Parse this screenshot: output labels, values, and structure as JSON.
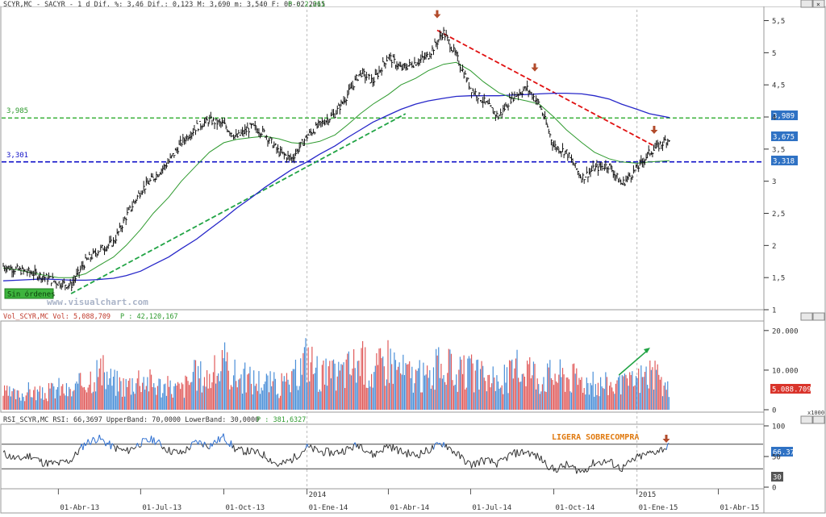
{
  "colors": {
    "price": "#111111",
    "ma_short": "#2e9a2e",
    "ma_long": "#2727c9",
    "support": "#1010c8",
    "resistance": "#18a418",
    "trend_down": "#e01010",
    "trend_up": "#21a445",
    "arrow": "#b24b2b",
    "vol_up": "#4a8fd8",
    "vol_down": "#e05a5a",
    "rsi": "#333333",
    "rsi_over": "#2e6fd0",
    "tag_blue": "#2f72c4",
    "tag_red": "#d9342b",
    "tag_gray": "#555555",
    "tag_green": "#3db43d",
    "label_orange": "#e07a10"
  },
  "price_panel": {
    "header": {
      "main": "SCYR,MC - SACYR -  1 d Dif. %: 3,46 Dif.: 0,123 M: 3,690 m: 3,540 F: 06-02-2015",
      "extra": "P : 2,261"
    },
    "line_labels": {
      "resistance": "3,985",
      "support": "3,301"
    },
    "last_tags": {
      "resistance": "3,989",
      "close": "3,675",
      "ma": "3,318"
    },
    "badge": "Sin órdenes",
    "watermark": "www.visualchart.com"
  },
  "volume_panel": {
    "header": {
      "main": "Vol_SCYR,MC Vol: 5,088,709",
      "extra": "P : 42,120,167"
    },
    "tag": "5.088.709",
    "unit": "x1000"
  },
  "rsi_panel": {
    "header": {
      "main": "RSI_SCYR,MC RSI: 66,3697 UpperBand: 70,0000 LowerBand: 30,0000",
      "extra": "P : 381,6327"
    },
    "tags": {
      "value": "66.37",
      "lower": "30"
    },
    "annotation": "LIGERA SOBRECOMPRA"
  },
  "chart_data": [
    {
      "type": "line",
      "title": "SCYR,MC - SACYR - 1 d",
      "xlabel": "",
      "ylabel": "",
      "x": [
        "2013-01-30",
        "2013-02-15",
        "2013-03-01",
        "2013-03-15",
        "2013-04-01",
        "2013-04-15",
        "2013-05-01",
        "2013-05-15",
        "2013-06-01",
        "2013-06-15",
        "2013-07-01",
        "2013-07-15",
        "2013-08-01",
        "2013-08-15",
        "2013-09-01",
        "2013-09-15",
        "2013-10-01",
        "2013-10-15",
        "2013-11-01",
        "2013-11-15",
        "2013-12-01",
        "2013-12-15",
        "2014-01-01",
        "2014-01-15",
        "2014-02-01",
        "2014-02-15",
        "2014-03-01",
        "2014-03-15",
        "2014-04-01",
        "2014-04-15",
        "2014-05-01",
        "2014-05-15",
        "2014-06-01",
        "2014-06-15",
        "2014-07-01",
        "2014-07-15",
        "2014-08-01",
        "2014-08-15",
        "2014-09-01",
        "2014-09-15",
        "2014-10-01",
        "2014-10-15",
        "2014-11-01",
        "2014-11-15",
        "2014-12-01",
        "2014-12-15",
        "2015-01-01",
        "2015-01-15",
        "2015-02-06"
      ],
      "series": [
        {
          "values": [
            1.68,
            1.62,
            1.58,
            1.52,
            1.42,
            1.38,
            1.75,
            1.92,
            2.05,
            2.45,
            2.85,
            3.05,
            3.3,
            3.6,
            3.85,
            3.95,
            3.88,
            3.68,
            3.85,
            3.75,
            3.45,
            3.35,
            3.7,
            3.88,
            4.05,
            4.35,
            4.7,
            4.55,
            4.95,
            4.75,
            4.85,
            4.95,
            5.32,
            4.95,
            4.45,
            4.25,
            4.0,
            4.3,
            4.45,
            4.2,
            3.55,
            3.45,
            3.05,
            3.2,
            3.25,
            2.95,
            3.2,
            3.45,
            3.675
          ]
        },
        {
          "values": [
            1.65,
            1.62,
            1.58,
            1.54,
            1.5,
            1.5,
            1.56,
            1.68,
            1.82,
            2.0,
            2.25,
            2.5,
            2.75,
            3.0,
            3.25,
            3.45,
            3.6,
            3.65,
            3.68,
            3.7,
            3.66,
            3.6,
            3.58,
            3.62,
            3.72,
            3.88,
            4.05,
            4.2,
            4.35,
            4.5,
            4.6,
            4.72,
            4.82,
            4.85,
            4.72,
            4.55,
            4.38,
            4.3,
            4.25,
            4.2,
            4.0,
            3.8,
            3.6,
            3.45,
            3.35,
            3.3,
            3.28,
            3.3,
            3.32
          ]
        },
        {
          "values": [
            1.45,
            1.46,
            1.47,
            1.48,
            1.47,
            1.46,
            1.46,
            1.47,
            1.49,
            1.53,
            1.6,
            1.7,
            1.82,
            1.95,
            2.1,
            2.25,
            2.42,
            2.58,
            2.75,
            2.9,
            3.05,
            3.18,
            3.3,
            3.42,
            3.55,
            3.68,
            3.8,
            3.92,
            4.03,
            4.12,
            4.2,
            4.25,
            4.29,
            4.32,
            4.33,
            4.33,
            4.33,
            4.34,
            4.35,
            4.36,
            4.37,
            4.37,
            4.36,
            4.33,
            4.28,
            4.2,
            4.12,
            4.05,
            3.99
          ]
        }
      ],
      "lines": {
        "resistance": 3.985,
        "support": 3.301
      },
      "trendlines": [
        {
          "from": [
            "2013-04-15",
            1.25
          ],
          "to": [
            "2014-04-20",
            4.05
          ]
        },
        {
          "from": [
            "2014-05-25",
            5.35
          ],
          "to": [
            "2015-01-20",
            3.55
          ]
        }
      ],
      "markers": [
        [
          "2014-05-25",
          5.55
        ],
        [
          "2014-09-10",
          4.72
        ],
        [
          "2015-01-20",
          3.75
        ]
      ],
      "ylim": [
        1,
        5.6
      ],
      "yticks": [
        "1",
        "1,5",
        "2",
        "2,5",
        "3",
        "3,5",
        "4",
        "4,5",
        "5",
        "5,5"
      ],
      "xticks": [
        "01-Abr-13",
        "01-Jul-13",
        "01-Oct-13",
        "01-Ene-14",
        "01-Abr-14",
        "01-Jul-14",
        "01-Oct-14",
        "01-Ene-15",
        "01-Abr-15"
      ],
      "year_marks": [
        "2014",
        "2015"
      ]
    },
    {
      "type": "bar",
      "title": "Vol_SCYR,MC",
      "xlabel": "",
      "ylabel": "",
      "x": [
        "2013-01-30",
        "2013-02-15",
        "2013-03-01",
        "2013-03-15",
        "2013-04-01",
        "2013-04-15",
        "2013-05-01",
        "2013-05-15",
        "2013-06-01",
        "2013-06-15",
        "2013-07-01",
        "2013-07-15",
        "2013-08-01",
        "2013-08-15",
        "2013-09-01",
        "2013-09-15",
        "2013-10-01",
        "2013-10-15",
        "2013-11-01",
        "2013-11-15",
        "2013-12-01",
        "2013-12-15",
        "2014-01-01",
        "2014-01-15",
        "2014-02-01",
        "2014-02-15",
        "2014-03-01",
        "2014-03-15",
        "2014-04-01",
        "2014-04-15",
        "2014-05-01",
        "2014-05-15",
        "2014-06-01",
        "2014-06-15",
        "2014-07-01",
        "2014-07-15",
        "2014-08-01",
        "2014-08-15",
        "2014-09-01",
        "2014-09-15",
        "2014-10-01",
        "2014-10-15",
        "2014-11-01",
        "2014-11-15",
        "2014-12-01",
        "2014-12-15",
        "2015-01-01",
        "2015-01-15",
        "2015-02-06"
      ],
      "series": [
        {
          "name": "Vol",
          "values": [
            4500,
            3800,
            5200,
            4000,
            6000,
            4500,
            8000,
            10500,
            7500,
            6500,
            9000,
            7000,
            6000,
            5500,
            9500,
            8500,
            12000,
            9000,
            8000,
            7500,
            6500,
            7000,
            14500,
            9500,
            9000,
            11000,
            13000,
            9500,
            14000,
            10500,
            9000,
            8500,
            12500,
            9000,
            10000,
            8500,
            7000,
            9500,
            12000,
            8500,
            9500,
            9000,
            8000,
            6500,
            7000,
            6000,
            8000,
            10000,
            5089
          ]
        }
      ],
      "ylim": [
        0,
        22000
      ],
      "yticks": [
        "0",
        "10.000",
        "20.000"
      ]
    },
    {
      "type": "line",
      "title": "RSI_SCYR,MC",
      "xlabel": "",
      "ylabel": "",
      "x": [
        "2013-01-30",
        "2013-02-15",
        "2013-03-01",
        "2013-03-15",
        "2013-04-01",
        "2013-04-15",
        "2013-05-01",
        "2013-05-15",
        "2013-06-01",
        "2013-06-15",
        "2013-07-01",
        "2013-07-15",
        "2013-08-01",
        "2013-08-15",
        "2013-09-01",
        "2013-09-15",
        "2013-10-01",
        "2013-10-15",
        "2013-11-01",
        "2013-11-15",
        "2013-12-01",
        "2013-12-15",
        "2014-01-01",
        "2014-01-15",
        "2014-02-01",
        "2014-02-15",
        "2014-03-01",
        "2014-03-15",
        "2014-04-01",
        "2014-04-15",
        "2014-05-01",
        "2014-05-15",
        "2014-06-01",
        "2014-06-15",
        "2014-07-01",
        "2014-07-15",
        "2014-08-01",
        "2014-08-15",
        "2014-09-01",
        "2014-09-15",
        "2014-10-01",
        "2014-10-15",
        "2014-11-01",
        "2014-11-15",
        "2014-12-01",
        "2014-12-15",
        "2015-01-01",
        "2015-01-15",
        "2015-02-06"
      ],
      "series": [
        {
          "name": "RSI",
          "values": [
            55,
            45,
            52,
            40,
            38,
            44,
            72,
            80,
            65,
            58,
            72,
            78,
            60,
            55,
            74,
            68,
            82,
            60,
            58,
            52,
            35,
            45,
            65,
            58,
            56,
            62,
            70,
            52,
            68,
            58,
            52,
            60,
            72,
            55,
            36,
            44,
            38,
            54,
            58,
            48,
            28,
            36,
            25,
            40,
            42,
            30,
            48,
            55,
            66.37
          ]
        }
      ],
      "bands": {
        "upper": 70,
        "lower": 30
      },
      "ylim": [
        0,
        100
      ],
      "yticks": [
        "0",
        "50",
        "100"
      ]
    }
  ]
}
